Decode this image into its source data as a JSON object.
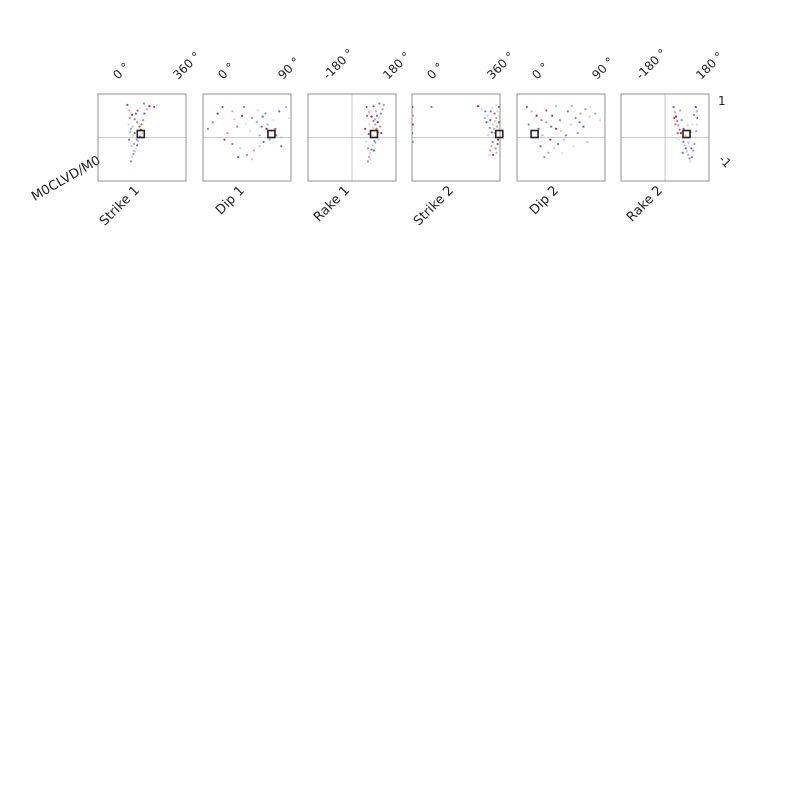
{
  "figure": {
    "ylabel_text": "M0CLVD/M0",
    "yaxis_ticks": [
      "1",
      "-1"
    ]
  },
  "colors": {
    "low": "#3b4cc0",
    "mid": "#dddddd",
    "high": "#b40426",
    "frame": "#777777",
    "ref_line": "#bbbbbb",
    "marker": "#222222"
  },
  "chart_data": [
    {
      "type": "scatter",
      "title": "Strike 1",
      "tick_labels": [
        "0 °",
        "360 °"
      ],
      "xlim": [
        0,
        360
      ],
      "ylim": [
        -1,
        1
      ],
      "ref_line_y": 0,
      "best_fit": {
        "x": 175,
        "y": 0.08
      },
      "points": [
        [
          120,
          0.75
        ],
        [
          128,
          0.62
        ],
        [
          140,
          0.52
        ],
        [
          150,
          0.42
        ],
        [
          160,
          0.35
        ],
        [
          170,
          0.25
        ],
        [
          175,
          0.18
        ],
        [
          180,
          0.1
        ],
        [
          172,
          0.02
        ],
        [
          165,
          -0.08
        ],
        [
          160,
          -0.18
        ],
        [
          155,
          -0.25
        ],
        [
          150,
          -0.32
        ],
        [
          145,
          -0.38
        ],
        [
          140,
          -0.45
        ],
        [
          135,
          -0.55
        ],
        [
          148,
          -0.15
        ],
        [
          130,
          0.45
        ],
        [
          125,
          0.3
        ],
        [
          135,
          0.2
        ],
        [
          145,
          0.05
        ],
        [
          190,
          0.55
        ],
        [
          200,
          0.65
        ],
        [
          210,
          0.72
        ],
        [
          185,
          0.4
        ],
        [
          178,
          0.3
        ],
        [
          168,
          0.15
        ],
        [
          158,
          -0.05
        ],
        [
          150,
          0.1
        ],
        [
          142,
          0.25
        ],
        [
          138,
          -0.2
        ],
        [
          162,
          0.62
        ],
        [
          175,
          0.68
        ],
        [
          188,
          0.78
        ],
        [
          230,
          0.7
        ],
        [
          240,
          0.75
        ],
        [
          132,
          0.12
        ],
        [
          127,
          -0.05
        ],
        [
          145,
          -0.3
        ],
        [
          155,
          0.55
        ]
      ],
      "colors": [
        "#3b4cc0",
        "#f4987a",
        "#b40426",
        "#dd5d4e",
        "#7396f5",
        "#cf453c",
        "#b40426",
        "#f6bfa6",
        "#5673e0",
        "#9ebeff",
        "#4961d2",
        "#aac7fd",
        "#f08b6e",
        "#6788ee",
        "#b7cff9",
        "#5977e3",
        "#ee8468",
        "#e7745b",
        "#c0d4f5",
        "#7b9ff9",
        "#f2cbb7",
        "#4358cb",
        "#86a9fc",
        "#b40426",
        "#e36b54",
        "#d24b40",
        "#cbd8ee",
        "#6a8bef",
        "#3d50c3",
        "#f7ad90",
        "#94b6ff",
        "#c43032",
        "#e0dbd8",
        "#5b7ae5",
        "#bb1b2c",
        "#d6dce4",
        "#82a6fb",
        "#4e68d8",
        "#f7b89c",
        "#445acc"
      ]
    },
    {
      "type": "scatter",
      "title": "Dip 1",
      "tick_labels": [
        "0 °",
        "90 °"
      ],
      "xlim": [
        0,
        90
      ],
      "ylim": [
        -1,
        1
      ],
      "ref_line_y": 0,
      "best_fit": {
        "x": 70,
        "y": 0.08
      },
      "points": [
        [
          20,
          0.7
        ],
        [
          30,
          0.6
        ],
        [
          40,
          0.5
        ],
        [
          50,
          0.45
        ],
        [
          55,
          0.35
        ],
        [
          60,
          0.25
        ],
        [
          65,
          0.2
        ],
        [
          70,
          0.15
        ],
        [
          75,
          0.05
        ],
        [
          80,
          0.0
        ],
        [
          62,
          -0.1
        ],
        [
          58,
          -0.2
        ],
        [
          52,
          -0.3
        ],
        [
          45,
          -0.4
        ],
        [
          38,
          -0.25
        ],
        [
          30,
          -0.15
        ],
        [
          25,
          0.1
        ],
        [
          35,
          0.25
        ],
        [
          48,
          0.15
        ],
        [
          68,
          -0.05
        ],
        [
          72,
          0.4
        ],
        [
          78,
          0.6
        ],
        [
          85,
          0.7
        ],
        [
          15,
          0.55
        ],
        [
          10,
          0.35
        ],
        [
          42,
          0.7
        ],
        [
          56,
          0.62
        ],
        [
          64,
          0.55
        ],
        [
          36,
          -0.45
        ],
        [
          50,
          -0.5
        ],
        [
          66,
          0.3
        ],
        [
          74,
          0.2
        ],
        [
          88,
          0.45
        ],
        [
          5,
          0.2
        ],
        [
          22,
          -0.05
        ],
        [
          44,
          0.32
        ],
        [
          58,
          0.05
        ],
        [
          80,
          -0.2
        ],
        [
          32,
          0.42
        ],
        [
          61,
          0.48
        ]
      ],
      "colors": [
        "#3b4cc0",
        "#f4987a",
        "#b40426",
        "#dd5d4e",
        "#7396f5",
        "#cf453c",
        "#b40426",
        "#f6bfa6",
        "#5673e0",
        "#9ebeff",
        "#4961d2",
        "#aac7fd",
        "#f08b6e",
        "#6788ee",
        "#b7cff9",
        "#5977e3",
        "#ee8468",
        "#e7745b",
        "#c0d4f5",
        "#7b9ff9",
        "#f2cbb7",
        "#4358cb",
        "#86a9fc",
        "#b40426",
        "#e36b54",
        "#d24b40",
        "#cbd8ee",
        "#6a8bef",
        "#3d50c3",
        "#f7ad90",
        "#94b6ff",
        "#c43032",
        "#e0dbd8",
        "#5b7ae5",
        "#bb1b2c",
        "#d6dce4",
        "#82a6fb",
        "#4e68d8",
        "#f7b89c",
        "#445acc"
      ]
    },
    {
      "type": "scatter",
      "title": "Rake 1",
      "tick_labels": [
        "-180 °",
        "180 °"
      ],
      "xlim": [
        -180,
        180
      ],
      "ylim": [
        -1,
        1
      ],
      "ref_line_y": 0,
      "ref_line_x": 0,
      "best_fit": {
        "x": 90,
        "y": 0.08
      },
      "points": [
        [
          60,
          0.7
        ],
        [
          70,
          0.58
        ],
        [
          80,
          0.48
        ],
        [
          88,
          0.38
        ],
        [
          95,
          0.3
        ],
        [
          100,
          0.2
        ],
        [
          105,
          0.12
        ],
        [
          100,
          0.02
        ],
        [
          92,
          -0.08
        ],
        [
          85,
          -0.18
        ],
        [
          80,
          -0.28
        ],
        [
          75,
          -0.35
        ],
        [
          70,
          -0.45
        ],
        [
          65,
          -0.55
        ],
        [
          110,
          0.45
        ],
        [
          118,
          0.55
        ],
        [
          125,
          0.65
        ],
        [
          130,
          0.75
        ],
        [
          72,
          0.3
        ],
        [
          78,
          0.15
        ],
        [
          84,
          0.05
        ],
        [
          90,
          -0.3
        ],
        [
          96,
          -0.12
        ],
        [
          105,
          0.35
        ],
        [
          115,
          0.25
        ],
        [
          62,
          0.5
        ],
        [
          58,
          -0.1
        ],
        [
          66,
          -0.25
        ],
        [
          120,
          0.1
        ],
        [
          108,
          -0.05
        ],
        [
          98,
          0.6
        ],
        [
          88,
          0.72
        ],
        [
          76,
          0.62
        ],
        [
          112,
          0.78
        ],
        [
          54,
          0.2
        ],
        [
          74,
          -0.5
        ],
        [
          94,
          0.42
        ],
        [
          102,
          0.5
        ],
        [
          86,
          0.22
        ],
        [
          68,
          0.08
        ]
      ],
      "colors": [
        "#3b4cc0",
        "#f4987a",
        "#b40426",
        "#dd5d4e",
        "#7396f5",
        "#cf453c",
        "#b40426",
        "#f6bfa6",
        "#5673e0",
        "#9ebeff",
        "#4961d2",
        "#aac7fd",
        "#f08b6e",
        "#6788ee",
        "#b7cff9",
        "#5977e3",
        "#ee8468",
        "#e7745b",
        "#c0d4f5",
        "#7b9ff9",
        "#f2cbb7",
        "#4358cb",
        "#86a9fc",
        "#b40426",
        "#e36b54",
        "#d24b40",
        "#cbd8ee",
        "#6a8bef",
        "#3d50c3",
        "#f7ad90",
        "#94b6ff",
        "#c43032",
        "#e0dbd8",
        "#5b7ae5",
        "#bb1b2c",
        "#d6dce4",
        "#82a6fb",
        "#4e68d8",
        "#f7b89c",
        "#445acc"
      ]
    },
    {
      "type": "scatter",
      "title": "Strike 2",
      "tick_labels": [
        "0 °",
        "360 °"
      ],
      "xlim": [
        0,
        360
      ],
      "ylim": [
        -1,
        1
      ],
      "ref_line_y": 0,
      "best_fit": {
        "x": 357,
        "y": 0.08
      },
      "points": [
        [
          2,
          0.7
        ],
        [
          5,
          0.5
        ],
        [
          3,
          0.3
        ],
        [
          1,
          0.1
        ],
        [
          4,
          -0.1
        ],
        [
          80,
          0.7
        ],
        [
          270,
          0.72
        ],
        [
          285,
          0.65
        ],
        [
          300,
          0.6
        ],
        [
          310,
          0.5
        ],
        [
          320,
          0.4
        ],
        [
          330,
          0.3
        ],
        [
          335,
          0.2
        ],
        [
          340,
          0.1
        ],
        [
          335,
          0.0
        ],
        [
          330,
          -0.1
        ],
        [
          325,
          -0.2
        ],
        [
          320,
          -0.3
        ],
        [
          315,
          -0.4
        ],
        [
          345,
          0.45
        ],
        [
          350,
          0.6
        ],
        [
          355,
          0.7
        ],
        [
          348,
          0.25
        ],
        [
          352,
          -0.05
        ],
        [
          342,
          -0.25
        ],
        [
          338,
          0.55
        ],
        [
          328,
          0.68
        ],
        [
          318,
          0.22
        ],
        [
          305,
          0.35
        ],
        [
          312,
          0.05
        ],
        [
          346,
          -0.35
        ],
        [
          356,
          0.35
        ],
        [
          358,
          0.5
        ],
        [
          322,
          0.6
        ],
        [
          332,
          -0.4
        ],
        [
          344,
          0.75
        ],
        [
          298,
          0.45
        ],
        [
          326,
          0.12
        ],
        [
          340,
          0.38
        ],
        [
          350,
          -0.15
        ]
      ],
      "colors": [
        "#3b4cc0",
        "#f4987a",
        "#b40426",
        "#dd5d4e",
        "#7396f5",
        "#cf453c",
        "#b40426",
        "#f6bfa6",
        "#5673e0",
        "#9ebeff",
        "#4961d2",
        "#aac7fd",
        "#f08b6e",
        "#6788ee",
        "#b7cff9",
        "#5977e3",
        "#ee8468",
        "#e7745b",
        "#c0d4f5",
        "#7b9ff9",
        "#f2cbb7",
        "#4358cb",
        "#86a9fc",
        "#b40426",
        "#e36b54",
        "#d24b40",
        "#cbd8ee",
        "#6a8bef",
        "#3d50c3",
        "#f7ad90",
        "#94b6ff",
        "#c43032",
        "#e0dbd8",
        "#5b7ae5",
        "#bb1b2c",
        "#d6dce4",
        "#82a6fb",
        "#4e68d8",
        "#f7b89c",
        "#445acc"
      ]
    },
    {
      "type": "scatter",
      "title": "Dip 2",
      "tick_labels": [
        "0 °",
        "90 °"
      ],
      "xlim": [
        0,
        90
      ],
      "ylim": [
        -1,
        1
      ],
      "ref_line_y": 0,
      "best_fit": {
        "x": 18,
        "y": 0.08
      },
      "points": [
        [
          10,
          0.7
        ],
        [
          15,
          0.6
        ],
        [
          20,
          0.5
        ],
        [
          25,
          0.4
        ],
        [
          30,
          0.35
        ],
        [
          35,
          0.25
        ],
        [
          40,
          0.2
        ],
        [
          45,
          0.15
        ],
        [
          50,
          0.05
        ],
        [
          48,
          -0.05
        ],
        [
          42,
          -0.15
        ],
        [
          38,
          -0.25
        ],
        [
          32,
          -0.35
        ],
        [
          28,
          -0.45
        ],
        [
          55,
          0.3
        ],
        [
          60,
          0.45
        ],
        [
          65,
          0.55
        ],
        [
          70,
          0.65
        ],
        [
          75,
          0.7
        ],
        [
          80,
          0.55
        ],
        [
          85,
          0.4
        ],
        [
          22,
          0.2
        ],
        [
          26,
          0.05
        ],
        [
          34,
          -0.05
        ],
        [
          44,
          0.4
        ],
        [
          52,
          0.6
        ],
        [
          58,
          -0.2
        ],
        [
          62,
          0.1
        ],
        [
          68,
          0.25
        ],
        [
          72,
          -0.1
        ],
        [
          40,
          0.72
        ],
        [
          30,
          0.62
        ],
        [
          18,
          0.45
        ],
        [
          12,
          0.3
        ],
        [
          36,
          0.5
        ],
        [
          46,
          -0.35
        ],
        [
          56,
          0.72
        ],
        [
          64,
          0.35
        ],
        [
          74,
          0.48
        ],
        [
          24,
          -0.2
        ]
      ],
      "colors": [
        "#3b4cc0",
        "#f4987a",
        "#b40426",
        "#dd5d4e",
        "#7396f5",
        "#cf453c",
        "#b40426",
        "#f6bfa6",
        "#5673e0",
        "#9ebeff",
        "#4961d2",
        "#aac7fd",
        "#f08b6e",
        "#6788ee",
        "#b7cff9",
        "#5977e3",
        "#ee8468",
        "#e7745b",
        "#c0d4f5",
        "#7b9ff9",
        "#f2cbb7",
        "#4358cb",
        "#86a9fc",
        "#b40426",
        "#e36b54",
        "#d24b40",
        "#cbd8ee",
        "#6a8bef",
        "#3d50c3",
        "#f7ad90",
        "#94b6ff",
        "#c43032",
        "#e0dbd8",
        "#5b7ae5",
        "#bb1b2c",
        "#d6dce4",
        "#82a6fb",
        "#4e68d8",
        "#f7b89c",
        "#445acc"
      ]
    },
    {
      "type": "scatter",
      "title": "Rake 2",
      "tick_labels": [
        "-180 °",
        "180 °"
      ],
      "xlim": [
        -180,
        180
      ],
      "ylim": [
        -1,
        1
      ],
      "ref_line_y": 0,
      "ref_line_x": 0,
      "best_fit": {
        "x": 88,
        "y": 0.08
      },
      "points": [
        [
          35,
          0.7
        ],
        [
          40,
          0.58
        ],
        [
          45,
          0.48
        ],
        [
          50,
          0.38
        ],
        [
          55,
          0.28
        ],
        [
          60,
          0.18
        ],
        [
          65,
          0.1
        ],
        [
          70,
          0.0
        ],
        [
          75,
          -0.1
        ],
        [
          80,
          -0.18
        ],
        [
          85,
          -0.25
        ],
        [
          90,
          -0.32
        ],
        [
          95,
          -0.4
        ],
        [
          100,
          -0.48
        ],
        [
          105,
          -0.55
        ],
        [
          110,
          -0.45
        ],
        [
          115,
          -0.3
        ],
        [
          120,
          -0.15
        ],
        [
          125,
          0.0
        ],
        [
          128,
          0.15
        ],
        [
          130,
          0.3
        ],
        [
          132,
          0.45
        ],
        [
          130,
          0.6
        ],
        [
          126,
          0.7
        ],
        [
          42,
          0.3
        ],
        [
          52,
          0.1
        ],
        [
          58,
          -0.05
        ],
        [
          68,
          0.4
        ],
        [
          76,
          0.2
        ],
        [
          84,
          0.05
        ],
        [
          96,
          -0.12
        ],
        [
          104,
          0.12
        ],
        [
          112,
          0.3
        ],
        [
          118,
          0.52
        ],
        [
          38,
          0.45
        ],
        [
          48,
          -0.02
        ],
        [
          62,
          0.62
        ],
        [
          72,
          -0.35
        ],
        [
          92,
          0.28
        ],
        [
          108,
          -0.25
        ]
      ],
      "colors": [
        "#3b4cc0",
        "#f4987a",
        "#b40426",
        "#dd5d4e",
        "#7396f5",
        "#cf453c",
        "#b40426",
        "#f6bfa6",
        "#5673e0",
        "#9ebeff",
        "#4961d2",
        "#aac7fd",
        "#f08b6e",
        "#6788ee",
        "#b7cff9",
        "#5977e3",
        "#ee8468",
        "#e7745b",
        "#c0d4f5",
        "#7b9ff9",
        "#f2cbb7",
        "#4358cb",
        "#86a9fc",
        "#b40426",
        "#e36b54",
        "#d24b40",
        "#cbd8ee",
        "#6a8bef",
        "#3d50c3",
        "#f7ad90",
        "#94b6ff",
        "#c43032",
        "#e0dbd8",
        "#5b7ae5",
        "#bb1b2c",
        "#d6dce4",
        "#82a6fb",
        "#4e68d8",
        "#f7b89c",
        "#445acc"
      ]
    }
  ]
}
